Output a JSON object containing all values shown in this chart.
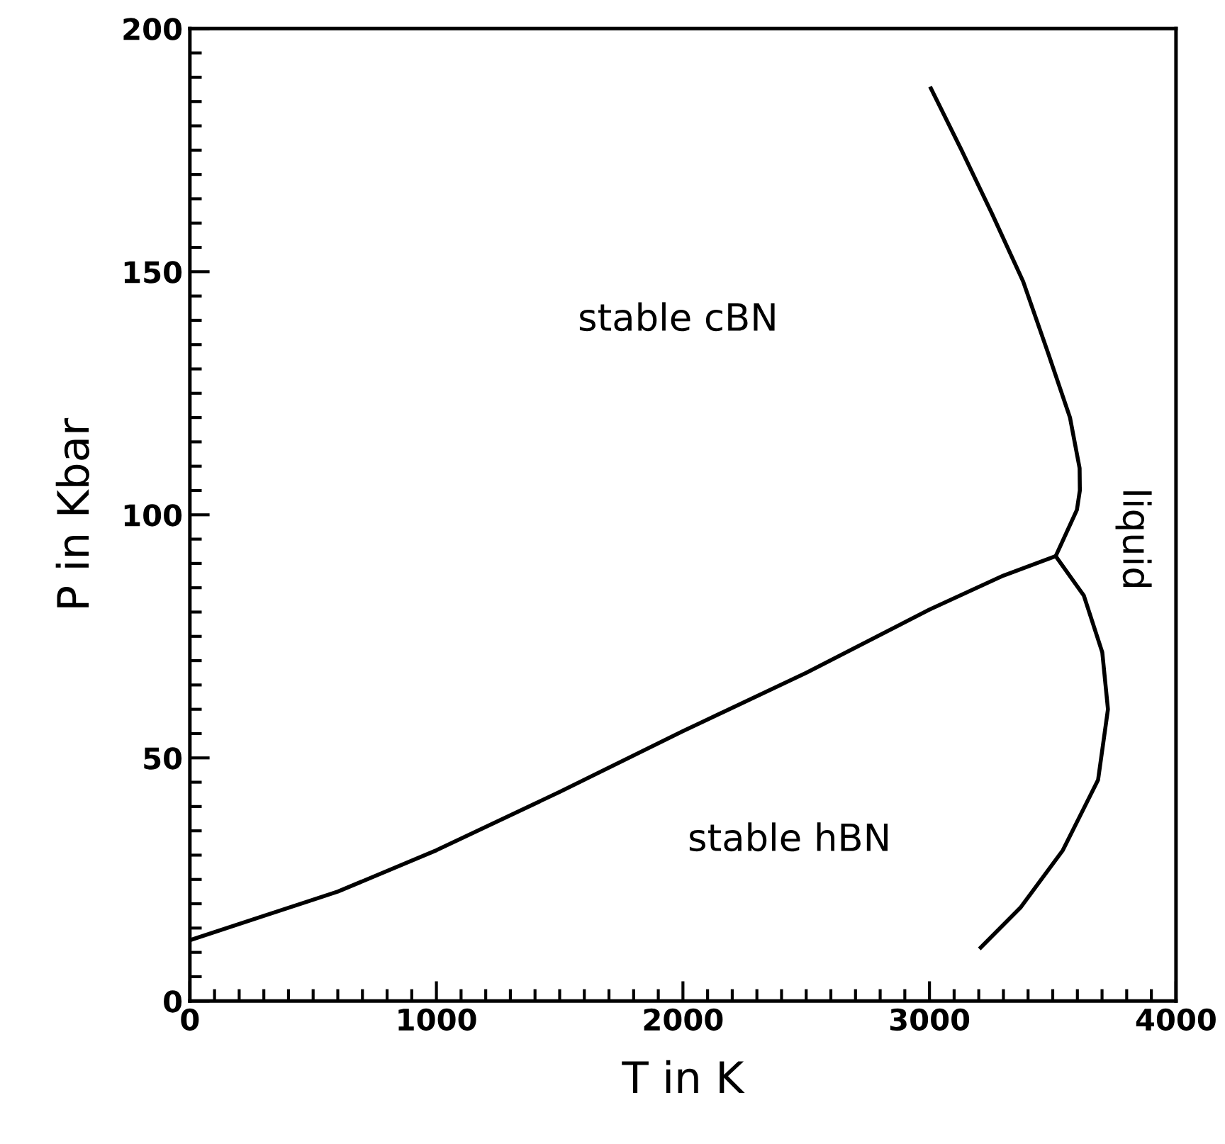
{
  "chart_data": {
    "type": "line",
    "xlabel": "T in K",
    "ylabel": "P in Kbar",
    "xlim": [
      0,
      4000
    ],
    "xticks": [
      0,
      1000,
      2000,
      3000,
      4000
    ],
    "ylim": [
      0,
      200
    ],
    "yticks": [
      0,
      50,
      100,
      150,
      200
    ],
    "grid": false,
    "legend": false,
    "marker": "none",
    "line_style": "solid",
    "series": [
      {
        "color": "#000000",
        "x": [
          0,
          300,
          600,
          1000,
          1500,
          2000,
          2500,
          3000,
          3300,
          3512
        ],
        "values": [
          12.5,
          17.5,
          22.5,
          31,
          43,
          55.5,
          67.5,
          80.5,
          87.5,
          91.5
        ]
      },
      {
        "color": "#000000",
        "x": [
          3006,
          3130,
          3253,
          3380,
          3483,
          3570,
          3609,
          3610,
          3598,
          3512
        ],
        "values": [
          187.7,
          175,
          162,
          148,
          133,
          120,
          109.6,
          105,
          101,
          91.5
        ]
      },
      {
        "color": "#000000",
        "x": [
          3512,
          3626,
          3701,
          3724,
          3684,
          3541,
          3369,
          3208
        ],
        "values": [
          91.5,
          83.4,
          71.7,
          60,
          45.5,
          31,
          19.2,
          11
        ]
      }
    ],
    "annotations": [
      "stable cBN",
      "stable hBN",
      "liquid"
    ]
  }
}
